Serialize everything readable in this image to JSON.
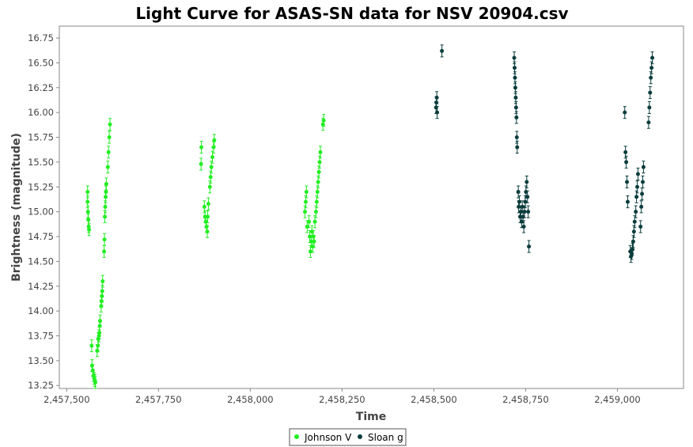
{
  "chart_data": {
    "type": "scatter",
    "title": "Light Curve for ASAS-SN data for NSV 20904.csv",
    "xlabel": "Time",
    "ylabel": "Brightness (magnitude)",
    "xlim": [
      2457480,
      2459180
    ],
    "ylim": [
      16.87,
      13.22
    ],
    "y_inverted": true,
    "grid": false,
    "legend_position": "bottom-center",
    "x_ticks": [
      2457500,
      2457750,
      2458000,
      2458250,
      2458500,
      2458750,
      2459000
    ],
    "x_tick_labels": [
      "2,457,500",
      "2,457,750",
      "2,458,000",
      "2,458,250",
      "2,458,500",
      "2,458,750",
      "2,459,000"
    ],
    "y_ticks": [
      13.25,
      13.5,
      13.75,
      14.0,
      14.25,
      14.5,
      14.75,
      15.0,
      15.25,
      15.5,
      15.75,
      16.0,
      16.25,
      16.5,
      16.75
    ],
    "y_tick_labels": [
      "13.25",
      "13.50",
      "13.75",
      "14.00",
      "14.25",
      "14.50",
      "14.75",
      "15.00",
      "15.25",
      "15.50",
      "15.75",
      "16.00",
      "16.25",
      "16.50",
      "16.75"
    ],
    "series": [
      {
        "name": "Johnson V",
        "color": "#22ee22",
        "points": [
          [
            2457557,
            15.2
          ],
          [
            2457557,
            15.1
          ],
          [
            2457558,
            15.0
          ],
          [
            2457559,
            14.92
          ],
          [
            2457560,
            14.85
          ],
          [
            2457561,
            14.82
          ],
          [
            2457568,
            13.65
          ],
          [
            2457569,
            13.45
          ],
          [
            2457571,
            13.4
          ],
          [
            2457573,
            13.35
          ],
          [
            2457575,
            13.32
          ],
          [
            2457577,
            13.3
          ],
          [
            2457578,
            13.28
          ],
          [
            2457583,
            13.6
          ],
          [
            2457585,
            13.65
          ],
          [
            2457586,
            13.72
          ],
          [
            2457588,
            13.75
          ],
          [
            2457589,
            13.78
          ],
          [
            2457590,
            13.85
          ],
          [
            2457591,
            13.9
          ],
          [
            2457594,
            14.05
          ],
          [
            2457595,
            14.1
          ],
          [
            2457596,
            14.15
          ],
          [
            2457597,
            14.2
          ],
          [
            2457598,
            14.3
          ],
          [
            2457602,
            14.6
          ],
          [
            2457603,
            14.72
          ],
          [
            2457604,
            14.95
          ],
          [
            2457605,
            15.05
          ],
          [
            2457606,
            15.15
          ],
          [
            2457607,
            15.2
          ],
          [
            2457608,
            15.28
          ],
          [
            2457612,
            15.45
          ],
          [
            2457614,
            15.6
          ],
          [
            2457616,
            15.75
          ],
          [
            2457618,
            15.88
          ],
          [
            2457866,
            15.48
          ],
          [
            2457867,
            15.65
          ],
          [
            2457875,
            15.05
          ],
          [
            2457877,
            14.95
          ],
          [
            2457879,
            14.9
          ],
          [
            2457881,
            14.85
          ],
          [
            2457883,
            14.8
          ],
          [
            2457884,
            14.95
          ],
          [
            2457886,
            15.08
          ],
          [
            2457890,
            15.25
          ],
          [
            2457892,
            15.35
          ],
          [
            2457894,
            15.45
          ],
          [
            2457897,
            15.55
          ],
          [
            2457900,
            15.65
          ],
          [
            2457902,
            15.72
          ],
          [
            2458149,
            15.0
          ],
          [
            2458151,
            15.1
          ],
          [
            2458153,
            15.2
          ],
          [
            2458155,
            14.85
          ],
          [
            2458160,
            14.9
          ],
          [
            2458162,
            14.75
          ],
          [
            2458164,
            14.6
          ],
          [
            2458166,
            14.7
          ],
          [
            2458168,
            14.8
          ],
          [
            2458170,
            14.65
          ],
          [
            2458172,
            14.75
          ],
          [
            2458174,
            14.7
          ],
          [
            2458176,
            14.9
          ],
          [
            2458179,
            15.0
          ],
          [
            2458181,
            15.1
          ],
          [
            2458183,
            15.2
          ],
          [
            2458185,
            15.3
          ],
          [
            2458187,
            15.4
          ],
          [
            2458189,
            15.5
          ],
          [
            2458191,
            15.6
          ],
          [
            2458198,
            15.88
          ],
          [
            2458200,
            15.92
          ]
        ]
      },
      {
        "name": "Sloan g",
        "color": "#0b3d3d",
        "points": [
          [
            2458506,
            16.05
          ],
          [
            2458507,
            16.1
          ],
          [
            2458508,
            16.15
          ],
          [
            2458509,
            16.0
          ],
          [
            2458522,
            16.62
          ],
          [
            2458719,
            16.55
          ],
          [
            2458720,
            16.45
          ],
          [
            2458721,
            16.35
          ],
          [
            2458722,
            16.25
          ],
          [
            2458723,
            16.15
          ],
          [
            2458724,
            16.05
          ],
          [
            2458725,
            15.95
          ],
          [
            2458726,
            15.75
          ],
          [
            2458727,
            15.65
          ],
          [
            2458730,
            15.2
          ],
          [
            2458731,
            15.05
          ],
          [
            2458733,
            15.1
          ],
          [
            2458735,
            14.95
          ],
          [
            2458737,
            15.0
          ],
          [
            2458739,
            14.9
          ],
          [
            2458741,
            15.05
          ],
          [
            2458743,
            14.95
          ],
          [
            2458745,
            14.85
          ],
          [
            2458747,
            15.0
          ],
          [
            2458749,
            15.1
          ],
          [
            2458751,
            15.2
          ],
          [
            2458753,
            15.3
          ],
          [
            2458755,
            15.15
          ],
          [
            2458757,
            15.0
          ],
          [
            2458759,
            14.65
          ],
          [
            2459020,
            16.0
          ],
          [
            2459022,
            15.6
          ],
          [
            2459024,
            15.5
          ],
          [
            2459026,
            15.3
          ],
          [
            2459028,
            15.1
          ],
          [
            2459035,
            14.6
          ],
          [
            2459037,
            14.55
          ],
          [
            2459039,
            14.58
          ],
          [
            2459041,
            14.62
          ],
          [
            2459043,
            14.7
          ],
          [
            2459045,
            14.8
          ],
          [
            2459047,
            14.9
          ],
          [
            2459050,
            15.0
          ],
          [
            2459052,
            15.15
          ],
          [
            2459054,
            15.25
          ],
          [
            2459056,
            15.38
          ],
          [
            2459063,
            14.85
          ],
          [
            2459065,
            15.05
          ],
          [
            2459067,
            15.18
          ],
          [
            2459069,
            15.3
          ],
          [
            2459071,
            15.45
          ],
          [
            2459085,
            15.9
          ],
          [
            2459087,
            16.05
          ],
          [
            2459089,
            16.2
          ],
          [
            2459091,
            16.35
          ],
          [
            2459093,
            16.45
          ],
          [
            2459095,
            16.55
          ]
        ]
      }
    ]
  }
}
